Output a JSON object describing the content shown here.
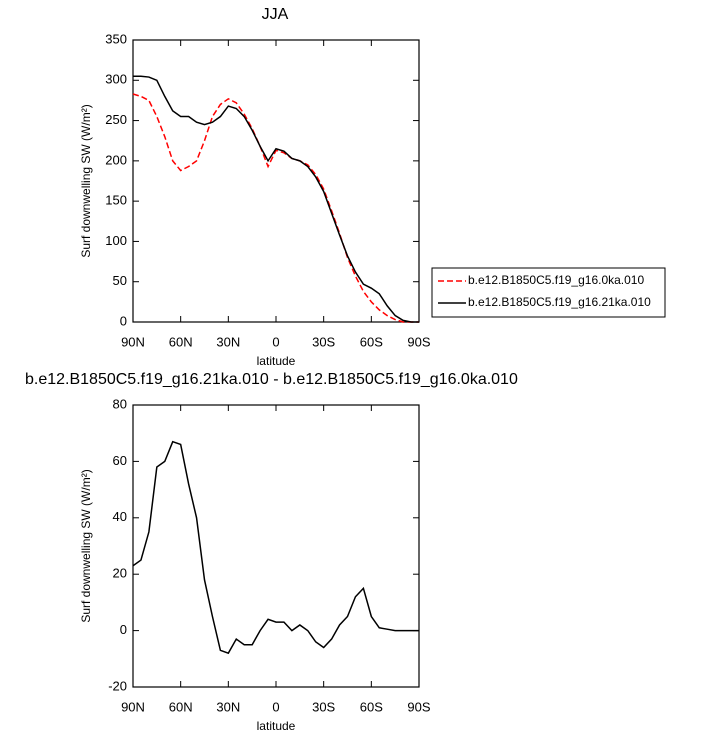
{
  "chart_data": [
    {
      "type": "line",
      "title": "JJA",
      "xlabel": "latitude",
      "ylabel": "Surf downwelling SW (W/m²)",
      "x": [
        90,
        85,
        80,
        75,
        70,
        65,
        60,
        55,
        50,
        45,
        40,
        35,
        30,
        25,
        20,
        15,
        10,
        5,
        0,
        -5,
        -10,
        -15,
        -20,
        -25,
        -30,
        -35,
        -40,
        -45,
        -50,
        -55,
        -60,
        -65,
        -70,
        -75,
        -80,
        -85,
        -90
      ],
      "series": [
        {
          "name": "b.e12.B1850C5.f19_g16.0ka.010",
          "color": "#ff0000",
          "dash": true,
          "values": [
            283,
            280,
            275,
            255,
            230,
            200,
            188,
            193,
            200,
            225,
            255,
            270,
            277,
            272,
            258,
            240,
            218,
            193,
            213,
            210,
            203,
            200,
            195,
            183,
            165,
            138,
            110,
            80,
            57,
            38,
            25,
            15,
            8,
            3,
            0,
            0,
            0
          ]
        },
        {
          "name": "b.e12.B1850C5.f19_g16.21ka.010",
          "color": "#000000",
          "dash": false,
          "values": [
            305,
            305,
            304,
            300,
            280,
            262,
            255,
            255,
            248,
            245,
            248,
            255,
            268,
            265,
            255,
            238,
            218,
            200,
            215,
            212,
            203,
            200,
            193,
            180,
            162,
            135,
            108,
            82,
            62,
            47,
            42,
            35,
            20,
            8,
            2,
            0,
            0
          ]
        }
      ],
      "xlim": [
        90,
        -90
      ],
      "xticks": [
        {
          "value": 90,
          "label": "90N"
        },
        {
          "value": 60,
          "label": "60N"
        },
        {
          "value": 30,
          "label": "30N"
        },
        0,
        {
          "value": -30,
          "label": "30S"
        },
        {
          "value": -60,
          "label": "60S"
        },
        {
          "value": -90,
          "label": "90S"
        }
      ],
      "ylim": [
        0,
        350
      ],
      "yticks": [
        0,
        50,
        100,
        150,
        200,
        250,
        300,
        350
      ]
    },
    {
      "type": "line",
      "title": "b.e12.B1850C5.f19_g16.21ka.010 - b.e12.B1850C5.f19_g16.0ka.010",
      "xlabel": "latitude",
      "ylabel": "Surf downwelling SW (W/m²)",
      "x": [
        90,
        85,
        80,
        75,
        70,
        65,
        60,
        55,
        50,
        45,
        40,
        35,
        30,
        25,
        20,
        15,
        10,
        5,
        0,
        -5,
        -10,
        -15,
        -20,
        -25,
        -30,
        -35,
        -40,
        -45,
        -50,
        -55,
        -60,
        -65,
        -70,
        -75,
        -80,
        -85,
        -90
      ],
      "series": [
        {
          "color": "#000000",
          "dash": false,
          "values": [
            23,
            25,
            35,
            58,
            60,
            67,
            66,
            52,
            40,
            18,
            5,
            -7,
            -8,
            -3,
            -5,
            -5,
            0,
            4,
            3,
            3,
            0,
            2,
            0,
            -4,
            -6,
            -3,
            2,
            5,
            12,
            15,
            5,
            1,
            0.5,
            0,
            0,
            0,
            0
          ]
        }
      ],
      "xlim": [
        90,
        -90
      ],
      "xticks": [
        {
          "value": 90,
          "label": "90N"
        },
        {
          "value": 60,
          "label": "60N"
        },
        {
          "value": 30,
          "label": "30N"
        },
        0,
        {
          "value": -30,
          "label": "30S"
        },
        {
          "value": -60,
          "label": "60S"
        },
        {
          "value": -90,
          "label": "90S"
        }
      ],
      "ylim": [
        -20,
        80
      ],
      "yticks": [
        -20,
        0,
        20,
        40,
        60,
        80
      ]
    }
  ]
}
